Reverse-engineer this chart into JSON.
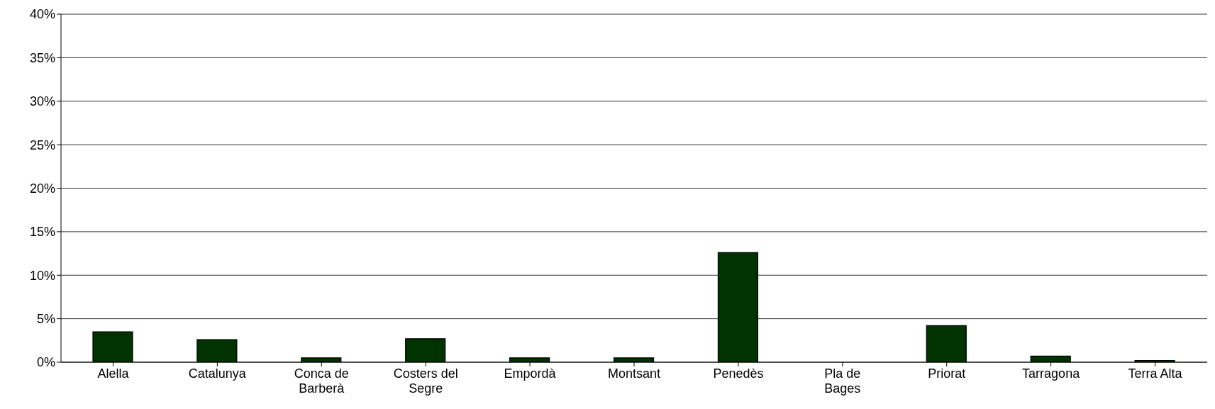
{
  "chart_data": {
    "type": "bar",
    "categories": [
      "Alella",
      "Catalunya",
      "Conca de Barberà",
      "Costers del Segre",
      "Empordà",
      "Montsant",
      "Penedès",
      "Pla de Bages",
      "Priorat",
      "Tarragona",
      "Terra Alta"
    ],
    "values": [
      3.5,
      2.6,
      0.5,
      2.7,
      0.5,
      0.5,
      12.6,
      0,
      4.2,
      0.7,
      0.2
    ],
    "color": "#003300",
    "ylim": [
      0,
      40
    ],
    "yticks": [
      {
        "value": 0,
        "label": "0%"
      },
      {
        "value": 5,
        "label": "5%"
      },
      {
        "value": 10,
        "label": "10%"
      },
      {
        "value": 15,
        "label": "15%"
      },
      {
        "value": 20,
        "label": "20%"
      },
      {
        "value": 25,
        "label": "25%"
      },
      {
        "value": 30,
        "label": "30%"
      },
      {
        "value": 35,
        "label": "35%"
      },
      {
        "value": 40,
        "label": "40%"
      }
    ],
    "grid": "y"
  }
}
